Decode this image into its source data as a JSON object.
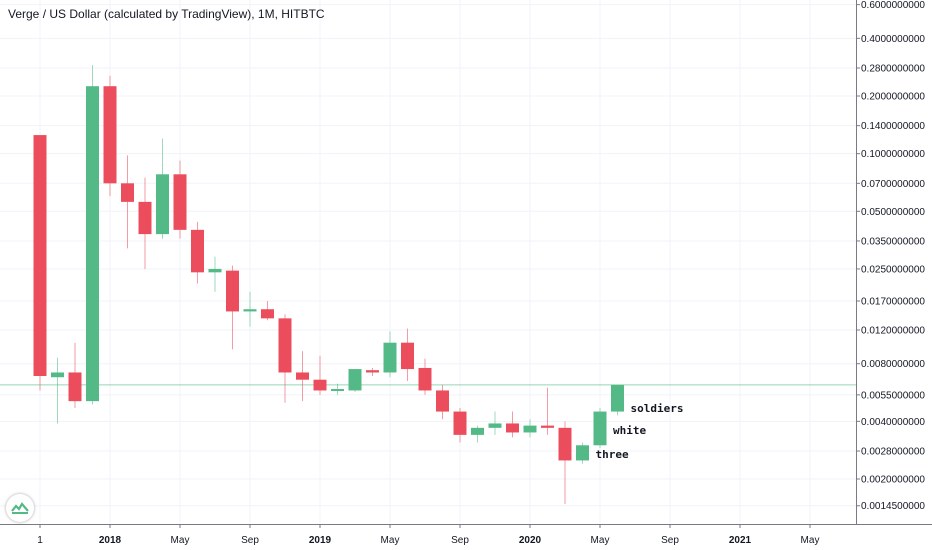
{
  "chart_data": {
    "type": "candlestick",
    "title": "Verge / US Dollar (calculated by TradingView), 1M, HITBTC",
    "y_scale": "log",
    "y_ticks": [
      "0.6000000000",
      "0.4000000000",
      "0.2800000000",
      "0.2000000000",
      "0.1400000000",
      "0.1000000000",
      "0.0700000000",
      "0.0500000000",
      "0.0350000000",
      "0.0250000000",
      "0.0170000000",
      "0.0120000000",
      "0.0080000000",
      "0.0055000000",
      "0.0040000000",
      "0.0028000000",
      "0.0020000000",
      "0.0014500000"
    ],
    "x_ticks": [
      {
        "label": "1",
        "bold": false
      },
      {
        "label": "2018",
        "bold": true
      },
      {
        "label": "May",
        "bold": false
      },
      {
        "label": "Sep",
        "bold": false
      },
      {
        "label": "2019",
        "bold": true
      },
      {
        "label": "May",
        "bold": false
      },
      {
        "label": "Sep",
        "bold": false
      },
      {
        "label": "2020",
        "bold": true
      },
      {
        "label": "May",
        "bold": false
      },
      {
        "label": "Sep",
        "bold": false
      },
      {
        "label": "2021",
        "bold": true
      },
      {
        "label": "May",
        "bold": false
      }
    ],
    "candles": [
      {
        "month": "2017-09",
        "open": 0.125,
        "high": 0.125,
        "low": 0.0058,
        "close": 0.0069
      },
      {
        "month": "2017-10",
        "open": 0.0068,
        "high": 0.0086,
        "low": 0.0039,
        "close": 0.0072
      },
      {
        "month": "2017-11",
        "open": 0.0072,
        "high": 0.0103,
        "low": 0.0047,
        "close": 0.0051
      },
      {
        "month": "2017-12",
        "open": 0.0051,
        "high": 0.29,
        "low": 0.0049,
        "close": 0.225
      },
      {
        "month": "2018-01",
        "open": 0.225,
        "high": 0.255,
        "low": 0.06,
        "close": 0.07
      },
      {
        "month": "2018-02",
        "open": 0.07,
        "high": 0.098,
        "low": 0.032,
        "close": 0.056
      },
      {
        "month": "2018-03",
        "open": 0.056,
        "high": 0.075,
        "low": 0.025,
        "close": 0.038
      },
      {
        "month": "2018-04",
        "open": 0.038,
        "high": 0.12,
        "low": 0.036,
        "close": 0.078
      },
      {
        "month": "2018-05",
        "open": 0.078,
        "high": 0.092,
        "low": 0.036,
        "close": 0.04
      },
      {
        "month": "2018-06",
        "open": 0.04,
        "high": 0.044,
        "low": 0.021,
        "close": 0.024
      },
      {
        "month": "2018-07",
        "open": 0.024,
        "high": 0.029,
        "low": 0.019,
        "close": 0.025
      },
      {
        "month": "2018-08",
        "open": 0.0245,
        "high": 0.026,
        "low": 0.0095,
        "close": 0.015
      },
      {
        "month": "2018-09",
        "open": 0.015,
        "high": 0.019,
        "low": 0.0125,
        "close": 0.0154
      },
      {
        "month": "2018-10",
        "open": 0.0154,
        "high": 0.017,
        "low": 0.0135,
        "close": 0.0138
      },
      {
        "month": "2018-11",
        "open": 0.0138,
        "high": 0.0145,
        "low": 0.005,
        "close": 0.0072
      },
      {
        "month": "2018-12",
        "open": 0.0072,
        "high": 0.0093,
        "low": 0.0051,
        "close": 0.0066
      },
      {
        "month": "2019-01",
        "open": 0.0066,
        "high": 0.0088,
        "low": 0.0055,
        "close": 0.0058
      },
      {
        "month": "2019-02",
        "open": 0.0058,
        "high": 0.0063,
        "low": 0.0055,
        "close": 0.0059
      },
      {
        "month": "2019-03",
        "open": 0.0058,
        "high": 0.0075,
        "low": 0.0057,
        "close": 0.0075
      },
      {
        "month": "2019-04",
        "open": 0.0074,
        "high": 0.0076,
        "low": 0.0069,
        "close": 0.0072
      },
      {
        "month": "2019-05",
        "open": 0.0072,
        "high": 0.0118,
        "low": 0.0068,
        "close": 0.0103
      },
      {
        "month": "2019-06",
        "open": 0.0103,
        "high": 0.0122,
        "low": 0.0065,
        "close": 0.0075
      },
      {
        "month": "2019-07",
        "open": 0.0076,
        "high": 0.0085,
        "low": 0.0055,
        "close": 0.0058
      },
      {
        "month": "2019-08",
        "open": 0.0058,
        "high": 0.0062,
        "low": 0.0041,
        "close": 0.0045
      },
      {
        "month": "2019-09",
        "open": 0.0045,
        "high": 0.0047,
        "low": 0.0031,
        "close": 0.0034
      },
      {
        "month": "2019-10",
        "open": 0.0034,
        "high": 0.0038,
        "low": 0.0031,
        "close": 0.0037
      },
      {
        "month": "2019-11",
        "open": 0.0037,
        "high": 0.0045,
        "low": 0.0034,
        "close": 0.0039
      },
      {
        "month": "2019-12",
        "open": 0.0039,
        "high": 0.0045,
        "low": 0.0033,
        "close": 0.0035
      },
      {
        "month": "2020-01",
        "open": 0.0035,
        "high": 0.0041,
        "low": 0.0033,
        "close": 0.0038
      },
      {
        "month": "2020-02",
        "open": 0.0038,
        "high": 0.006,
        "low": 0.0034,
        "close": 0.0037
      },
      {
        "month": "2020-03",
        "open": 0.0037,
        "high": 0.004,
        "low": 0.00148,
        "close": 0.0025
      },
      {
        "month": "2020-04",
        "open": 0.0025,
        "high": 0.0031,
        "low": 0.0024,
        "close": 0.003
      },
      {
        "month": "2020-05",
        "open": 0.003,
        "high": 0.0047,
        "low": 0.0029,
        "close": 0.0045
      },
      {
        "month": "2020-06",
        "open": 0.0045,
        "high": 0.0062,
        "low": 0.0043,
        "close": 0.0062
      }
    ],
    "price_line": 0.0062,
    "annotations": [
      {
        "text": "soldiers",
        "month": "2020-06",
        "value": 0.0047
      },
      {
        "text": "white",
        "month": "2020-05",
        "value": 0.0036
      },
      {
        "text": "three",
        "month": "2020-04",
        "value": 0.0027
      }
    ],
    "colors": {
      "up": "#53b987",
      "down": "#eb4d5c",
      "price_line": "#53b987",
      "grid": "#f0f3fa",
      "axis": "#787b86",
      "text": "#131722"
    },
    "grid": true
  }
}
